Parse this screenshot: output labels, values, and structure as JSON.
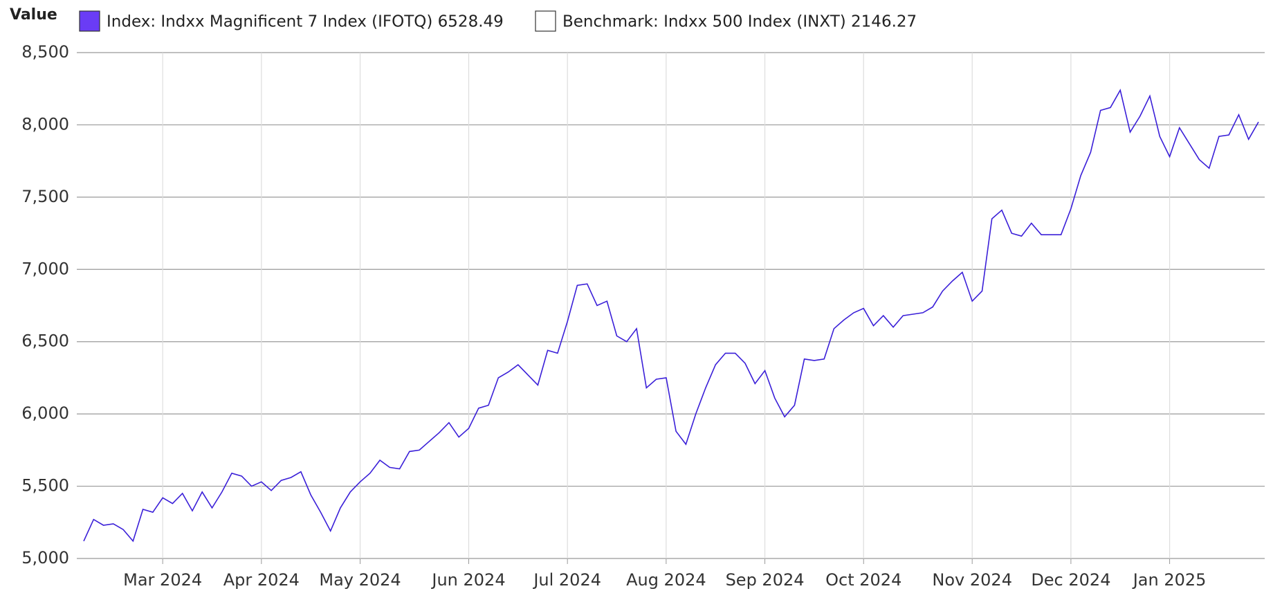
{
  "chart_data": {
    "type": "line",
    "ylabel": "Value",
    "categories": [
      null,
      null,
      null,
      null,
      null,
      null,
      null,
      null,
      "Mar 2024",
      null,
      null,
      null,
      null,
      null,
      null,
      null,
      null,
      null,
      "Apr 2024",
      null,
      null,
      null,
      null,
      null,
      null,
      null,
      null,
      null,
      "May 2024",
      null,
      null,
      null,
      null,
      null,
      null,
      null,
      null,
      null,
      null,
      "Jun 2024",
      null,
      null,
      null,
      null,
      null,
      null,
      null,
      null,
      null,
      "Jul 2024",
      null,
      null,
      null,
      null,
      null,
      null,
      null,
      null,
      null,
      "Aug 2024",
      null,
      null,
      null,
      null,
      null,
      null,
      null,
      null,
      null,
      "Sep 2024",
      null,
      null,
      null,
      null,
      null,
      null,
      null,
      null,
      null,
      "Oct 2024",
      null,
      null,
      null,
      null,
      null,
      null,
      null,
      null,
      null,
      null,
      "Nov 2024",
      null,
      null,
      null,
      null,
      null,
      null,
      null,
      null,
      null,
      "Dec 2024",
      null,
      null,
      null,
      null,
      null,
      null,
      null,
      null,
      null,
      "Jan 2025",
      null,
      null,
      null,
      null,
      null,
      null,
      null,
      null,
      null
    ],
    "series": [
      {
        "name": "Index: Indxx Magnificent 7 Index (IFOTQ) 6528.49",
        "color": "#3a1fd8",
        "legend_color": "#6a3cf5",
        "values": [
          5120,
          5270,
          5230,
          5240,
          5200,
          5120,
          5340,
          5320,
          5420,
          5380,
          5450,
          5330,
          5460,
          5350,
          5460,
          5590,
          5570,
          5500,
          5530,
          5470,
          5540,
          5560,
          5600,
          5440,
          5320,
          5190,
          5350,
          5460,
          5530,
          5590,
          5680,
          5630,
          5620,
          5740,
          5750,
          5810,
          5870,
          5940,
          5840,
          5900,
          6040,
          6060,
          6250,
          6290,
          6340,
          6270,
          6200,
          6440,
          6420,
          6640,
          6890,
          6900,
          6750,
          6780,
          6540,
          6500,
          6590,
          6180,
          6240,
          6250,
          5880,
          5790,
          6000,
          6180,
          6340,
          6420,
          6420,
          6350,
          6210,
          6300,
          6110,
          5980,
          6060,
          6380,
          6370,
          6380,
          6590,
          6650,
          6700,
          6730,
          6610,
          6680,
          6600,
          6680,
          6690,
          6700,
          6740,
          6850,
          6920,
          6980,
          6780,
          6850,
          7350,
          7410,
          7250,
          7230,
          7320,
          7240,
          7240,
          7240,
          7420,
          7650,
          7810,
          8100,
          8120,
          8240,
          7950,
          8060,
          8200,
          7920,
          7780,
          7980,
          7870,
          7760,
          7700,
          7920,
          7930,
          8070,
          7900,
          8020
        ]
      },
      {
        "name": "Benchmark: Indxx 500 Index (INXT) 2146.27",
        "color": "#ffffff",
        "legend_color": "#ffffff",
        "values": [
          null,
          null,
          null,
          null,
          null,
          null,
          null,
          null,
          null,
          null,
          null,
          null,
          null,
          null,
          null,
          null,
          null,
          null,
          null,
          null,
          null,
          null,
          null,
          null,
          null,
          null,
          null,
          null,
          null,
          null,
          null,
          null,
          null,
          null,
          null,
          null,
          null,
          null,
          null,
          null,
          null,
          null,
          null,
          null,
          null,
          null,
          null,
          null,
          null,
          null,
          null,
          null,
          null,
          null,
          null,
          null,
          null,
          null,
          null,
          null,
          null,
          null,
          null,
          null,
          null,
          null,
          null,
          null,
          null,
          null,
          null,
          null,
          null,
          null,
          null,
          null,
          null,
          null,
          null,
          null,
          null,
          null,
          null,
          null,
          null,
          null,
          null,
          null,
          null,
          null,
          null,
          null,
          null,
          null,
          null,
          null,
          null,
          null,
          null,
          null,
          null,
          null,
          null,
          null,
          null,
          null,
          null,
          null,
          null,
          null,
          null,
          null,
          null,
          null,
          null,
          null,
          null,
          null,
          null,
          null
        ]
      }
    ],
    "ylim": [
      5000,
      8500
    ],
    "yticks": [
      {
        "value": 5000,
        "label": "5,000"
      },
      {
        "value": 5500,
        "label": "5,500"
      },
      {
        "value": 6000,
        "label": "6,000"
      },
      {
        "value": 6500,
        "label": "6,500"
      },
      {
        "value": 7000,
        "label": "7,000"
      },
      {
        "value": 7500,
        "label": "7,500"
      },
      {
        "value": 8000,
        "label": "8,000"
      },
      {
        "value": 8500,
        "label": "8,500"
      }
    ],
    "grid": true
  }
}
